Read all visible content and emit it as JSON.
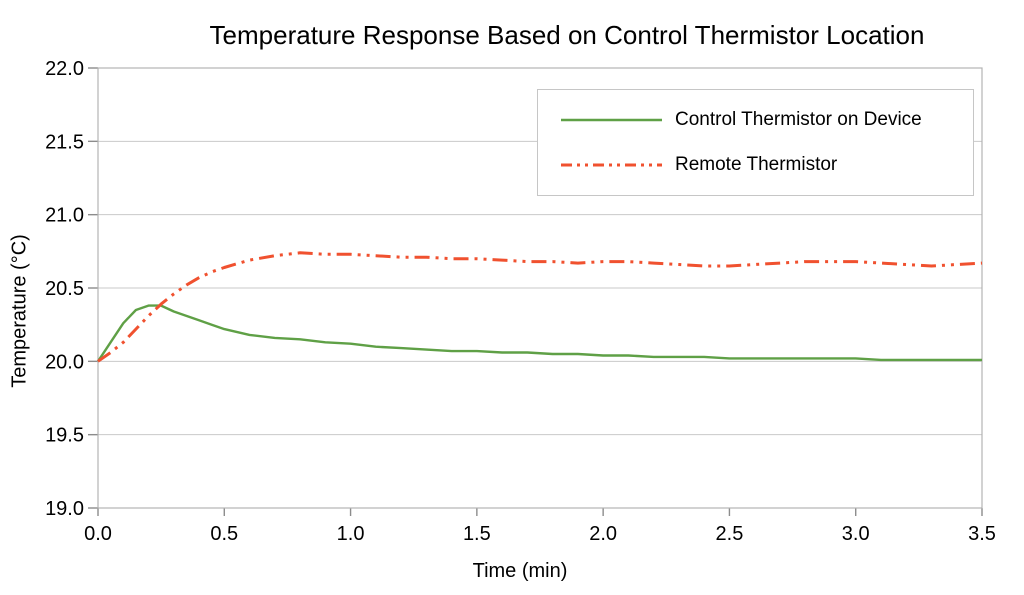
{
  "chart_data": {
    "type": "line",
    "title": "Temperature Response Based on Control Thermistor Location",
    "xlabel": "Time (min)",
    "ylabel": "Temperature (°C)",
    "xlim": [
      0.0,
      3.5
    ],
    "ylim": [
      19.0,
      22.0
    ],
    "x_ticks": [
      0.0,
      0.5,
      1.0,
      1.5,
      2.0,
      2.5,
      3.0,
      3.5
    ],
    "y_ticks": [
      19.0,
      19.5,
      20.0,
      20.5,
      21.0,
      21.5,
      22.0
    ],
    "grid": "horizontal",
    "legend_position": "top-right",
    "x": [
      0.0,
      0.05,
      0.1,
      0.15,
      0.2,
      0.25,
      0.3,
      0.35,
      0.4,
      0.45,
      0.5,
      0.6,
      0.7,
      0.8,
      0.9,
      1.0,
      1.1,
      1.2,
      1.3,
      1.4,
      1.5,
      1.6,
      1.7,
      1.8,
      1.9,
      2.0,
      2.1,
      2.2,
      2.3,
      2.4,
      2.5,
      2.6,
      2.7,
      2.8,
      2.9,
      3.0,
      3.1,
      3.2,
      3.3,
      3.4,
      3.5
    ],
    "series": [
      {
        "name": "Control Thermistor on Device",
        "color": "#5fa046",
        "style": "solid",
        "dash": "",
        "legend_dash": "",
        "values": [
          20.0,
          20.13,
          20.26,
          20.35,
          20.38,
          20.38,
          20.34,
          20.31,
          20.28,
          20.25,
          20.22,
          20.18,
          20.16,
          20.15,
          20.13,
          20.12,
          20.1,
          20.09,
          20.08,
          20.07,
          20.07,
          20.06,
          20.06,
          20.05,
          20.05,
          20.04,
          20.04,
          20.03,
          20.03,
          20.03,
          20.02,
          20.02,
          20.02,
          20.02,
          20.02,
          20.02,
          20.01,
          20.01,
          20.01,
          20.01,
          20.01
        ]
      },
      {
        "name": "Remote Thermistor",
        "color": "#f0512f",
        "style": "dash-dot-dot",
        "dash": "15 6 3 6 3 6",
        "legend_dash": "11 5 3 5 3 5",
        "values": [
          20.0,
          20.06,
          20.13,
          20.22,
          20.31,
          20.39,
          20.46,
          20.52,
          20.57,
          20.61,
          20.64,
          20.69,
          20.72,
          20.74,
          20.73,
          20.73,
          20.72,
          20.71,
          20.71,
          20.7,
          20.7,
          20.69,
          20.68,
          20.68,
          20.67,
          20.68,
          20.68,
          20.67,
          20.66,
          20.65,
          20.65,
          20.66,
          20.67,
          20.68,
          20.68,
          20.68,
          20.67,
          20.66,
          20.65,
          20.66,
          20.67
        ]
      }
    ],
    "colors": {
      "grid": "#c9c9c9",
      "frame": "#b3b3b3",
      "tick": "#8c8c8c",
      "text": "#000000",
      "background": "#ffffff",
      "legend_border": "#c6c6c6"
    }
  }
}
